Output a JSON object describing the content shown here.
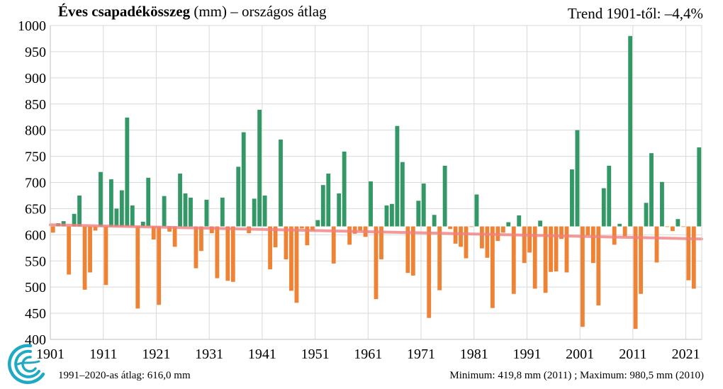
{
  "header": {
    "title_bold": "Éves csapadékösszeg",
    "title_rest": " (mm) – országos átlag",
    "trend": "Trend 1901-től: –4,4%"
  },
  "footer": {
    "average": "1991–2020-as átlag:  616,0 mm",
    "minmax": "Minimum:  419,8 mm (2011) ; Maximum:  980,5 mm (2010)"
  },
  "logo": {
    "icon": "swirl-logo-icon",
    "color": "#1ea9c4"
  },
  "chart_data": {
    "type": "bar",
    "baseline": 616.0,
    "ylim": [
      400,
      1000
    ],
    "yticks": [
      400,
      450,
      500,
      550,
      600,
      650,
      700,
      750,
      800,
      850,
      900,
      950,
      1000
    ],
    "xtick_labels": [
      "1901",
      "1911",
      "1921",
      "1931",
      "1941",
      "1951",
      "1961",
      "1971",
      "1981",
      "1991",
      "2001",
      "2011",
      "2021"
    ],
    "grid": true,
    "colors": {
      "above": "#329866",
      "below": "#ee8335",
      "trend": "#f08080",
      "grid": "#d9d9d9"
    },
    "trend": {
      "start_year": 1901,
      "start_value": 619,
      "end_year": 2023,
      "end_value": 592
    },
    "years": [
      1901,
      1902,
      1903,
      1904,
      1905,
      1906,
      1907,
      1908,
      1909,
      1910,
      1911,
      1912,
      1913,
      1914,
      1915,
      1916,
      1917,
      1918,
      1919,
      1920,
      1921,
      1922,
      1923,
      1924,
      1925,
      1926,
      1927,
      1928,
      1929,
      1930,
      1931,
      1932,
      1933,
      1934,
      1935,
      1936,
      1937,
      1938,
      1939,
      1940,
      1941,
      1942,
      1943,
      1944,
      1945,
      1946,
      1947,
      1948,
      1949,
      1950,
      1951,
      1952,
      1953,
      1954,
      1955,
      1956,
      1957,
      1958,
      1959,
      1960,
      1961,
      1962,
      1963,
      1964,
      1965,
      1966,
      1967,
      1968,
      1969,
      1970,
      1971,
      1972,
      1973,
      1974,
      1975,
      1976,
      1977,
      1978,
      1979,
      1980,
      1981,
      1982,
      1983,
      1984,
      1985,
      1986,
      1987,
      1988,
      1989,
      1990,
      1991,
      1992,
      1993,
      1994,
      1995,
      1996,
      1997,
      1998,
      1999,
      2000,
      2001,
      2002,
      2003,
      2004,
      2005,
      2006,
      2007,
      2008,
      2009,
      2010,
      2011,
      2012,
      2013,
      2014,
      2015,
      2016,
      2017,
      2018,
      2019,
      2020,
      2021,
      2022,
      2023
    ],
    "values": [
      604,
      622,
      626,
      524,
      640,
      675,
      495,
      528,
      608,
      720,
      504,
      706,
      650,
      685,
      824,
      656,
      459,
      625,
      709,
      591,
      466,
      674,
      606,
      577,
      717,
      679,
      671,
      536,
      569,
      667,
      603,
      517,
      671,
      512,
      510,
      730,
      796,
      603,
      669,
      839,
      675,
      534,
      576,
      782,
      553,
      493,
      470,
      612,
      580,
      608,
      628,
      695,
      717,
      545,
      679,
      759,
      581,
      602,
      608,
      596,
      702,
      477,
      553,
      656,
      659,
      808,
      739,
      527,
      522,
      665,
      698,
      441,
      638,
      494,
      732,
      611,
      583,
      577,
      555,
      615,
      677,
      574,
      556,
      460,
      588,
      604,
      624,
      487,
      637,
      546,
      566,
      497,
      627,
      489,
      529,
      530,
      592,
      528,
      725,
      800,
      424,
      599,
      546,
      465,
      689,
      732,
      581,
      621,
      597,
      980,
      420,
      487,
      661,
      756,
      547,
      701,
      615,
      607,
      630,
      615,
      513,
      497,
      767
    ]
  }
}
